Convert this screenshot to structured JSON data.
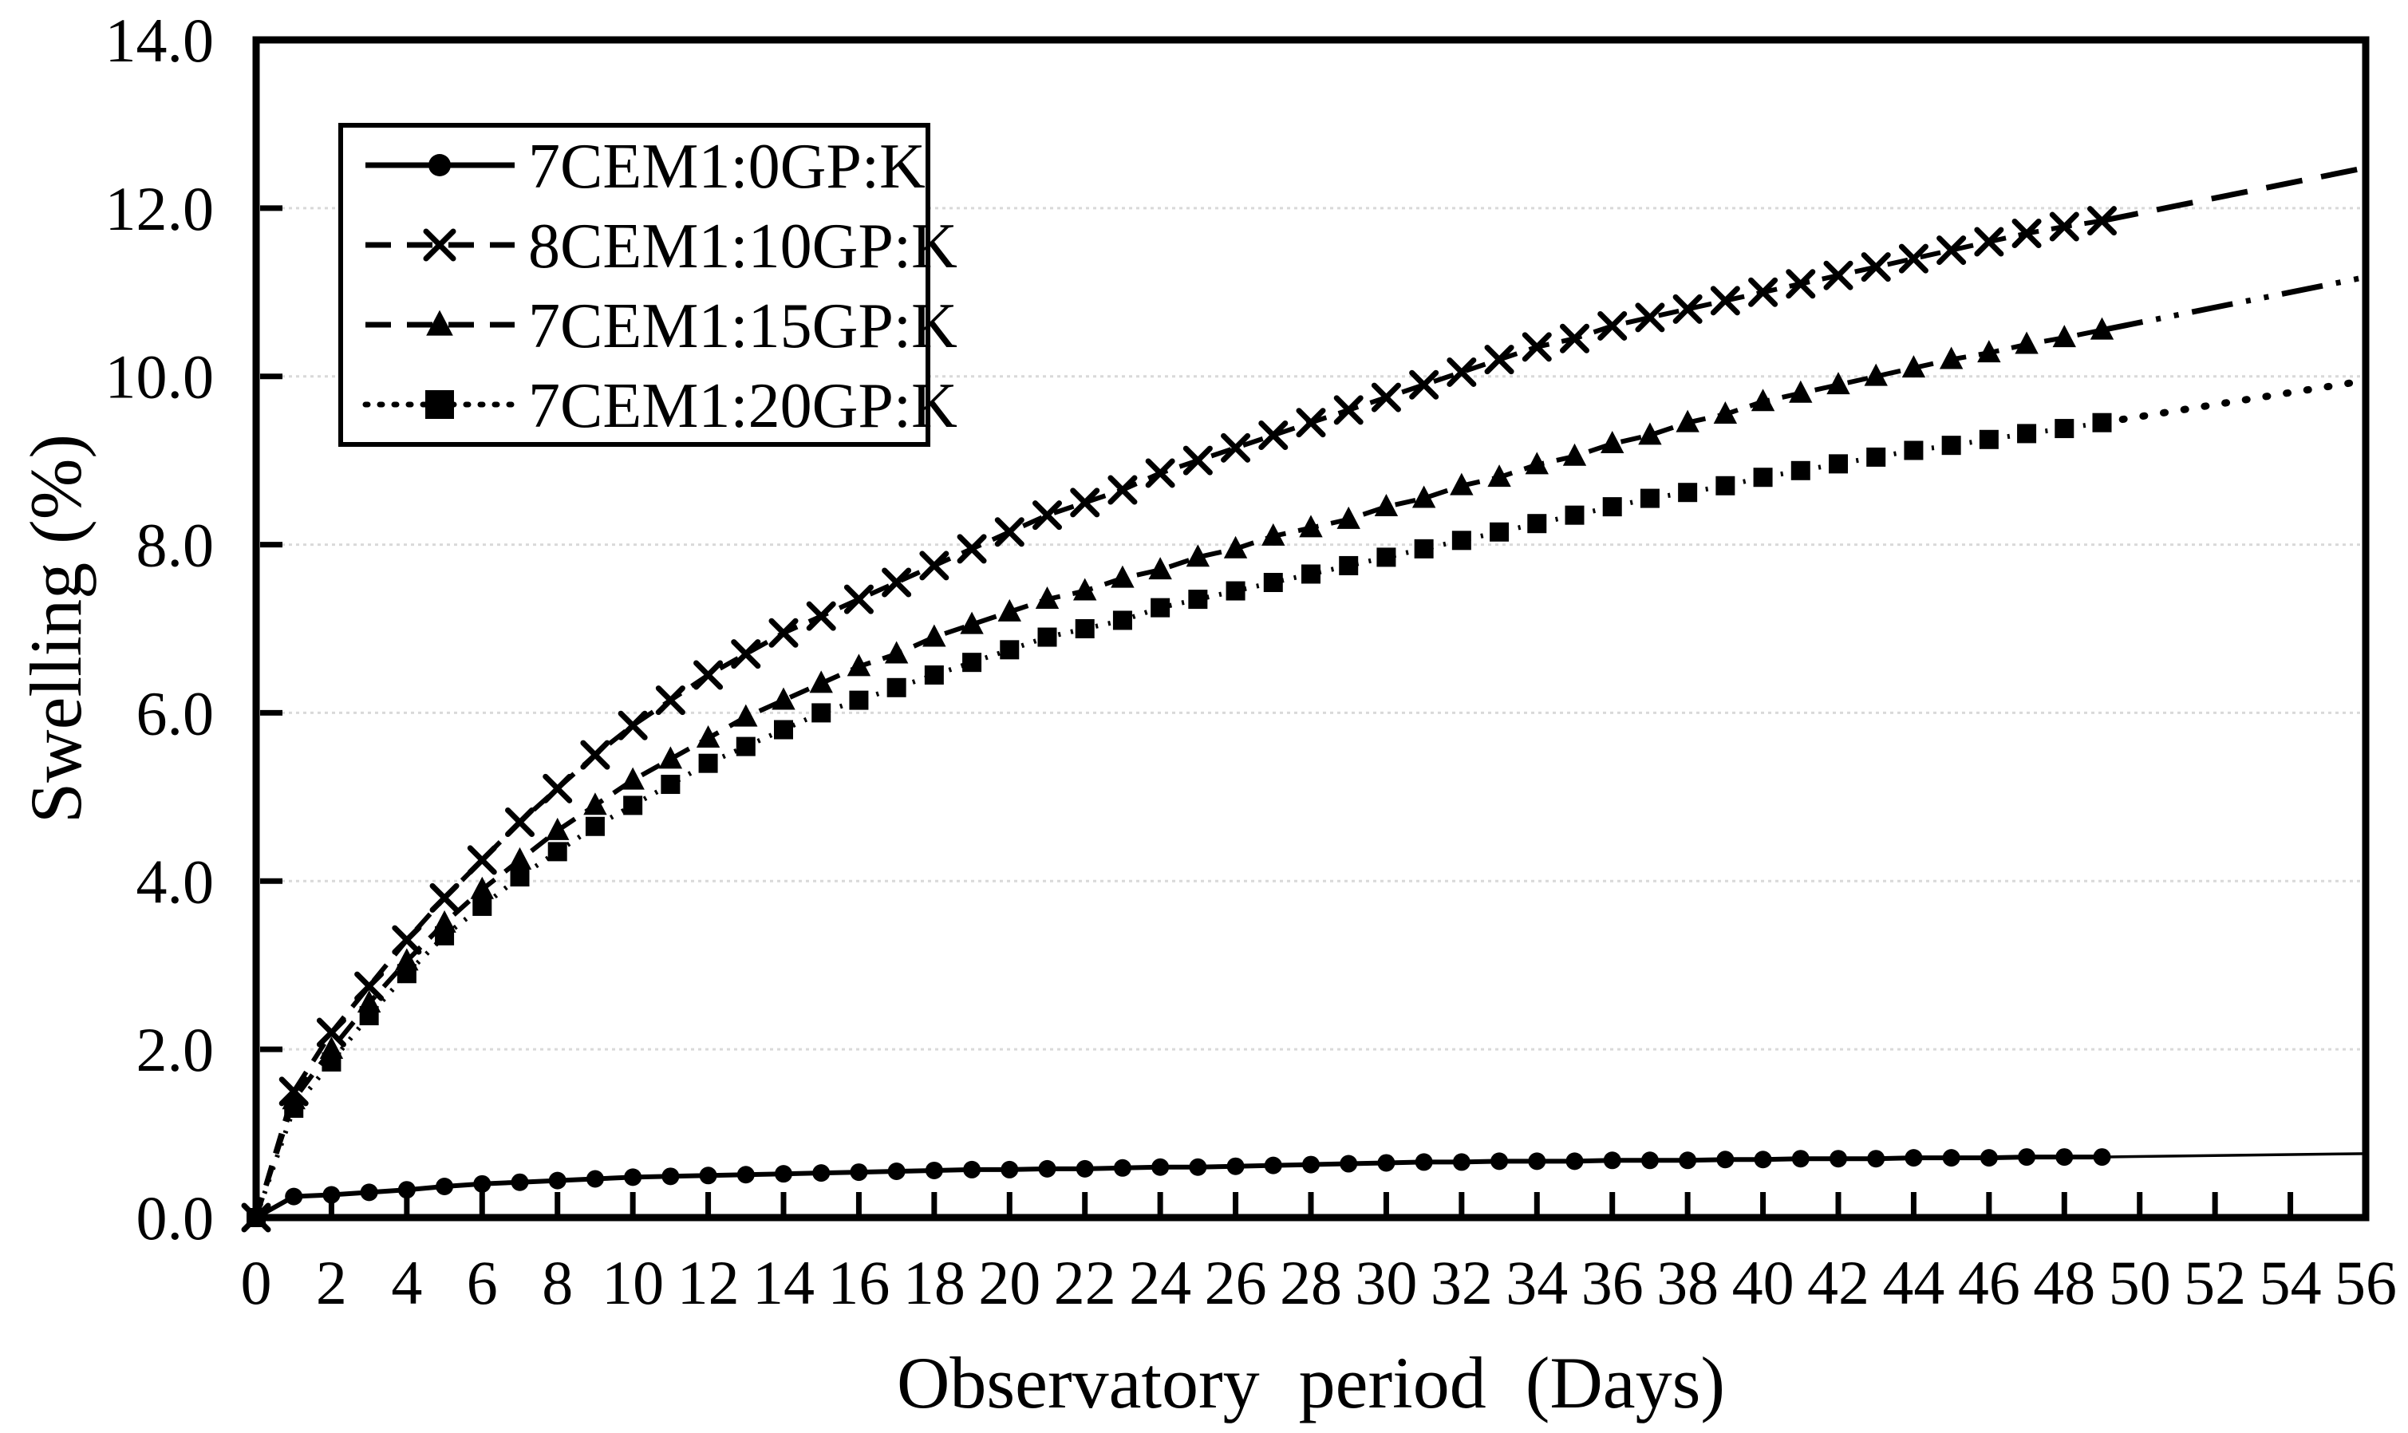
{
  "figure": {
    "background_color": "#ffffff",
    "foreground_color": "#000000",
    "gridline_color": "#d9d9d9"
  },
  "chart_data": {
    "type": "line",
    "title": "",
    "xlabel": "Observatory period (Days)",
    "ylabel": "Swelling (%)",
    "x_axis": {
      "min": 0,
      "max": 56,
      "tick_step": 2,
      "tick_labels": [
        "0",
        "2",
        "4",
        "6",
        "8",
        "10",
        "12",
        "14",
        "16",
        "18",
        "20",
        "22",
        "24",
        "26",
        "28",
        "30",
        "32",
        "34",
        "36",
        "38",
        "40",
        "42",
        "44",
        "46",
        "48",
        "50",
        "52",
        "54",
        "56"
      ]
    },
    "y_axis": {
      "min": 0,
      "max": 14,
      "tick_step": 2,
      "tick_labels": [
        "0.0",
        "2.0",
        "4.0",
        "6.0",
        "8.0",
        "10.0",
        "12.0",
        "14.0"
      ]
    },
    "grid": {
      "show": true,
      "color": "#d9d9d9",
      "at": [
        2,
        4,
        6,
        8,
        10,
        12
      ]
    },
    "legend": {
      "position": "top-left-inside",
      "entries": [
        "7CEM1:0GP:K",
        "8CEM1:10GP:K",
        "7CEM1:15GP:K",
        "7CEM1:20GP:K"
      ]
    },
    "series": [
      {
        "name": "7CEM1:0GP:K",
        "marker": "filled-circle",
        "line_style": "solid",
        "color": "#000000",
        "day_start": 0,
        "day_step": 1,
        "values": [
          0,
          0.25,
          0.27,
          0.3,
          0.33,
          0.37,
          0.4,
          0.42,
          0.44,
          0.46,
          0.48,
          0.49,
          0.5,
          0.51,
          0.52,
          0.53,
          0.54,
          0.55,
          0.56,
          0.57,
          0.57,
          0.58,
          0.58,
          0.59,
          0.6,
          0.6,
          0.61,
          0.62,
          0.63,
          0.64,
          0.65,
          0.66,
          0.66,
          0.67,
          0.67,
          0.67,
          0.68,
          0.68,
          0.68,
          0.69,
          0.69,
          0.7,
          0.7,
          0.7,
          0.71,
          0.71,
          0.71,
          0.72,
          0.72,
          0.72
        ],
        "extension": {
          "from_day": 49,
          "to_day": 56,
          "end_value": 0.76,
          "style": "solid-thin"
        }
      },
      {
        "name": "8CEM1:10GP:K",
        "marker": "x-cross",
        "line_style": "dashed",
        "color": "#000000",
        "day_start": 0,
        "day_step": 1,
        "values": [
          0,
          1.5,
          2.2,
          2.75,
          3.3,
          3.8,
          4.25,
          4.7,
          5.1,
          5.5,
          5.85,
          6.15,
          6.45,
          6.7,
          6.95,
          7.15,
          7.35,
          7.55,
          7.75,
          7.95,
          8.15,
          8.35,
          8.5,
          8.65,
          8.85,
          9,
          9.15,
          9.3,
          9.45,
          9.6,
          9.75,
          9.9,
          10.05,
          10.2,
          10.35,
          10.45,
          10.6,
          10.7,
          10.8,
          10.9,
          11,
          11.1,
          11.2,
          11.3,
          11.4,
          11.5,
          11.6,
          11.7,
          11.78,
          11.85
        ],
        "extension": {
          "from_day": 49,
          "to_day": 56,
          "end_value": 12.48,
          "style": "long-dash"
        }
      },
      {
        "name": "7CEM1:15GP:K",
        "marker": "filled-triangle",
        "line_style": "dashed",
        "color": "#000000",
        "day_start": 0,
        "day_step": 1,
        "values": [
          0,
          1.4,
          2,
          2.55,
          3.05,
          3.5,
          3.9,
          4.25,
          4.6,
          4.9,
          5.2,
          5.45,
          5.7,
          5.95,
          6.15,
          6.35,
          6.55,
          6.7,
          6.9,
          7.05,
          7.2,
          7.35,
          7.45,
          7.6,
          7.7,
          7.85,
          7.95,
          8.1,
          8.2,
          8.3,
          8.45,
          8.55,
          8.7,
          8.8,
          8.95,
          9.05,
          9.2,
          9.3,
          9.45,
          9.55,
          9.7,
          9.8,
          9.9,
          10,
          10.1,
          10.2,
          10.28,
          10.38,
          10.46,
          10.55
        ],
        "extension": {
          "from_day": 49,
          "to_day": 56,
          "end_value": 11.18,
          "style": "dash-dot-dot"
        }
      },
      {
        "name": "7CEM1:20GP:K",
        "marker": "filled-square",
        "line_style": "dotted",
        "color": "#000000",
        "day_start": 0,
        "day_step": 1,
        "values": [
          0,
          1.3,
          1.85,
          2.4,
          2.9,
          3.35,
          3.7,
          4.05,
          4.35,
          4.65,
          4.9,
          5.15,
          5.4,
          5.6,
          5.8,
          6,
          6.15,
          6.3,
          6.45,
          6.6,
          6.75,
          6.9,
          7,
          7.1,
          7.25,
          7.35,
          7.45,
          7.55,
          7.65,
          7.75,
          7.85,
          7.95,
          8.05,
          8.15,
          8.25,
          8.35,
          8.45,
          8.55,
          8.62,
          8.7,
          8.8,
          8.88,
          8.96,
          9.04,
          9.12,
          9.18,
          9.25,
          9.32,
          9.38,
          9.45
        ],
        "extension": {
          "from_day": 49,
          "to_day": 56,
          "end_value": 9.95,
          "style": "dot"
        }
      }
    ]
  }
}
